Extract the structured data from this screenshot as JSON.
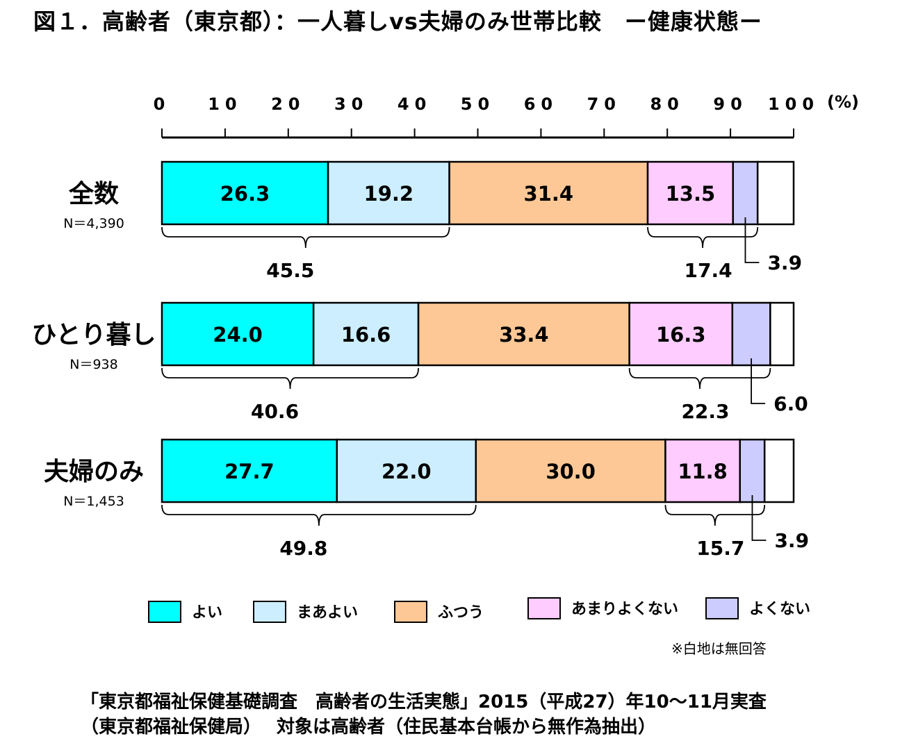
{
  "title": "図１．高齢者（東京都）：一人暮しvs夫婦のみ世帯比較　ー健康状態ー",
  "note": "※白地は無回答",
  "source_line1": "「東京都福祉保健基礎調査　高齢者の生活実態」2015（平成27）年10〜11月実査",
  "source_line2": "（東京都福祉保健局）　 対象は高齢者（住民基本台帳から無作為抽出）",
  "colors": {
    "yoi": "#00ffff",
    "maa_yoi": "#cceeff",
    "futsuu": "#fdc896",
    "amari_yokunai": "#ffccff",
    "yokunai": "#ccccff",
    "no_answer": "#ffffff"
  },
  "chart_data": {
    "type": "bar",
    "orientation": "horizontal-stacked",
    "xlim": [
      0,
      100
    ],
    "x_ticks": [
      "0",
      "10",
      "20",
      "30",
      "40",
      "50",
      "60",
      "70",
      "80",
      "90",
      "100"
    ],
    "x_unit": "(%)",
    "categories": [
      {
        "label": "全数",
        "n": "N＝4,390"
      },
      {
        "label": "ひとり暮し",
        "n": "N＝938"
      },
      {
        "label": "夫婦のみ",
        "n": "N＝1,453"
      }
    ],
    "series": [
      {
        "name": "よい",
        "values": [
          26.3,
          24.0,
          27.7
        ],
        "labels": [
          "26.3",
          "24.0",
          "27.7"
        ]
      },
      {
        "name": "まあよい",
        "values": [
          19.2,
          16.6,
          22.0
        ],
        "labels": [
          "19.2",
          "16.6",
          "22.0"
        ]
      },
      {
        "name": "ふつう",
        "values": [
          31.4,
          33.4,
          30.0
        ],
        "labels": [
          "31.4",
          "33.4",
          "30.0"
        ]
      },
      {
        "name": "あまりよくない",
        "values": [
          13.5,
          16.3,
          11.8
        ],
        "labels": [
          "13.5",
          "16.3",
          "11.8"
        ]
      },
      {
        "name": "よくない",
        "values": [
          3.9,
          6.0,
          3.9
        ],
        "labels": [
          "",
          "",
          ""
        ]
      }
    ],
    "no_answer_values": [
      5.7,
      3.7,
      2.6
    ],
    "good_totals": [
      "45.5",
      "40.6",
      "49.8"
    ],
    "bad_totals": [
      "17.4",
      "22.3",
      "15.7"
    ],
    "yokunai_callouts": [
      "3.9",
      "6.0",
      "3.9"
    ],
    "legend_position": "bottom"
  }
}
